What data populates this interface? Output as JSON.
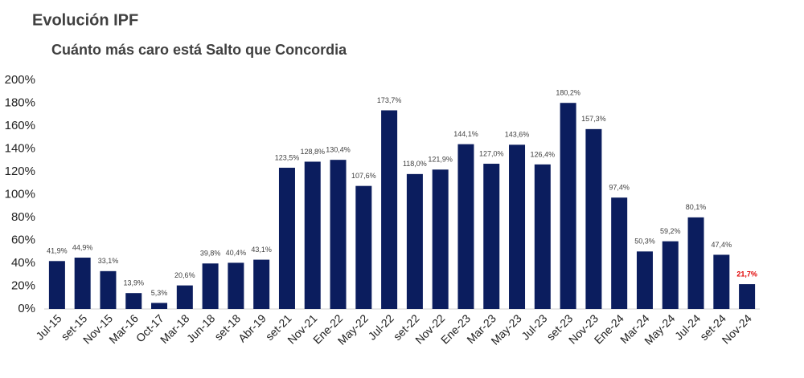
{
  "chart_data": {
    "type": "bar",
    "title": "Evolución IPF",
    "subtitle": "Cuánto más caro está Salto que Concordia",
    "categories": [
      "Jul-15",
      "set-15",
      "Nov-15",
      "Mar-16",
      "Oct-17",
      "Mar-18",
      "Jun-18",
      "set-18",
      "Abr-19",
      "set-21",
      "Nov-21",
      "Ene-22",
      "May-22",
      "Jul-22",
      "set-22",
      "Nov-22",
      "Ene-23",
      "Mar-23",
      "May-23",
      "Jul-23",
      "set-23",
      "Nov-23",
      "Ene-24",
      "Mar-24",
      "May-24",
      "Jul-24",
      "set-24",
      "Nov-24"
    ],
    "values": [
      41.9,
      44.9,
      33.1,
      13.9,
      5.3,
      20.6,
      39.8,
      40.4,
      43.1,
      123.5,
      128.8,
      130.4,
      107.6,
      173.7,
      118.0,
      121.9,
      144.1,
      127.0,
      143.6,
      126.4,
      180.2,
      157.3,
      97.4,
      50.3,
      59.2,
      80.1,
      47.4,
      21.7
    ],
    "value_labels": [
      "41,9%",
      "44,9%",
      "33,1%",
      "13,9%",
      "5,3%",
      "20,6%",
      "39,8%",
      "40,4%",
      "43,1%",
      "123,5%",
      "128,8%",
      "130,4%",
      "107,6%",
      "173,7%",
      "118,0%",
      "121,9%",
      "144,1%",
      "127,0%",
      "143,6%",
      "126,4%",
      "180,2%",
      "157,3%",
      "97,4%",
      "50,3%",
      "59,2%",
      "80,1%",
      "47,4%",
      "21,7%"
    ],
    "value_label_colors": [
      "#404040",
      "#404040",
      "#404040",
      "#404040",
      "#404040",
      "#404040",
      "#404040",
      "#404040",
      "#404040",
      "#404040",
      "#404040",
      "#404040",
      "#404040",
      "#404040",
      "#404040",
      "#404040",
      "#404040",
      "#404040",
      "#404040",
      "#404040",
      "#404040",
      "#404040",
      "#404040",
      "#404040",
      "#404040",
      "#404040",
      "#404040",
      "#e00000"
    ],
    "color": "#0b1d5e",
    "ylim": [
      0,
      200
    ],
    "yticks": [
      {
        "value": 0,
        "label": "0%"
      },
      {
        "value": 20,
        "label": "20%"
      },
      {
        "value": 40,
        "label": "40%"
      },
      {
        "value": 60,
        "label": "60%"
      },
      {
        "value": 80,
        "label": "80%"
      },
      {
        "value": 100,
        "label": "100%"
      },
      {
        "value": 120,
        "label": "120%"
      },
      {
        "value": 140,
        "label": "140%"
      },
      {
        "value": 160,
        "label": "160%"
      },
      {
        "value": 180,
        "label": "180%"
      },
      {
        "value": 200,
        "label": "200%"
      }
    ],
    "grid": false
  }
}
